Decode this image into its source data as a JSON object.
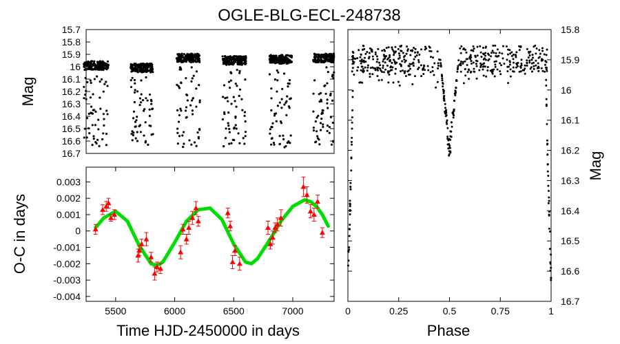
{
  "title": "OGLE-BLG-ECL-248738",
  "chart_data": [
    {
      "type": "scatter",
      "panel": "light-curve",
      "xlabel": "",
      "ylabel": "Mag",
      "xlim": [
        5300,
        7300
      ],
      "ylim": [
        15.7,
        16.7
      ],
      "y_inverted": true,
      "xticks": [],
      "yticks": [
        "15.7",
        "15.8",
        "15.9",
        "16",
        "16.1",
        "16.2",
        "16.3",
        "16.4",
        "16.5",
        "16.6",
        "16.7"
      ],
      "seasons": [
        {
          "start": 5280,
          "end": 5480
        },
        {
          "start": 5660,
          "end": 5840
        },
        {
          "start": 6030,
          "end": 6220
        },
        {
          "start": 6400,
          "end": 6590
        },
        {
          "start": 6780,
          "end": 6960
        },
        {
          "start": 7130,
          "end": 7300
        }
      ],
      "baseline_mag": 15.99,
      "eclipse_depth_mag": 16.65
    },
    {
      "type": "scatter",
      "panel": "o-c",
      "xlabel": "Time HJD-2450000 in days",
      "ylabel": "O-C in days",
      "xlim": [
        5250,
        7350
      ],
      "ylim": [
        -0.0043,
        0.0039
      ],
      "xticks": [
        "5500",
        "6000",
        "6500",
        "7000"
      ],
      "yticks": [
        "0.003",
        "0.002",
        "0.001",
        "0",
        "-0.001",
        "-0.002",
        "-0.003",
        "-0.004"
      ],
      "observed": {
        "name": "",
        "color": "#ff0000",
        "x": [
          5330,
          5390,
          5420,
          5440,
          5460,
          5490,
          5690,
          5700,
          5720,
          5760,
          5800,
          5830,
          5850,
          5880,
          6050,
          6070,
          6100,
          6120,
          6150,
          6180,
          6200,
          6450,
          6470,
          6490,
          6510,
          6550,
          6790,
          6810,
          6830,
          6850,
          6870,
          6900,
          7090,
          7120,
          7150,
          7180,
          7210,
          7250
        ],
        "y": [
          0.0001,
          0.0013,
          0.0015,
          0.0017,
          0.0008,
          0.001,
          -0.0015,
          -0.0012,
          -0.0008,
          -0.0005,
          -0.0016,
          -0.0026,
          -0.0022,
          -0.0023,
          -0.0013,
          0.0001,
          -0.0005,
          0.0002,
          0.0008,
          0.0014,
          0.0006,
          0.0011,
          0.0003,
          -0.0019,
          -0.0012,
          -0.002,
          0.0002,
          -0.0008,
          -0.0004,
          0.0002,
          0.0004,
          0.0008,
          0.0027,
          0.0022,
          0.0012,
          0.001,
          0.0018,
          -0.0001
        ],
        "err": [
          0.0003,
          0.0003,
          0.0003,
          0.0003,
          0.0002,
          0.0003,
          0.0004,
          0.0003,
          0.0003,
          0.0004,
          0.0003,
          0.0004,
          0.0003,
          0.0003,
          0.0004,
          0.0003,
          0.0003,
          0.0004,
          0.0004,
          0.0004,
          0.0003,
          0.0003,
          0.0003,
          0.0004,
          0.0003,
          0.0004,
          0.0004,
          0.0003,
          0.0004,
          0.0003,
          0.0004,
          0.0005,
          0.0006,
          0.0005,
          0.0004,
          0.0004,
          0.0004,
          0.0003
        ]
      },
      "model": {
        "name": "",
        "color": "#00dd00",
        "type": "sinusoid",
        "x": [
          5330,
          5400,
          5500,
          5600,
          5700,
          5800,
          5850,
          5900,
          6000,
          6100,
          6200,
          6300,
          6400,
          6500,
          6600,
          6650,
          6700,
          6800,
          6900,
          7000,
          7100,
          7150,
          7200,
          7250,
          7300
        ],
        "y": [
          0.0002,
          0.0008,
          0.0012,
          0.0006,
          -0.0009,
          -0.002,
          -0.0021,
          -0.0019,
          -0.0007,
          0.0006,
          0.0013,
          0.0014,
          0.0007,
          -0.0008,
          -0.0019,
          -0.002,
          -0.0017,
          -0.0006,
          0.0006,
          0.0015,
          0.0019,
          0.0018,
          0.0015,
          0.001,
          0.0003
        ]
      }
    },
    {
      "type": "scatter",
      "panel": "phased",
      "xlabel": "Phase",
      "ylabel": "Mag",
      "xlim": [
        0,
        1
      ],
      "ylim": [
        15.8,
        16.7
      ],
      "y_inverted": true,
      "xticks": [
        "0",
        "0.25",
        "0.5",
        "0.75",
        "1"
      ],
      "yticks": [
        "15.8",
        "15.9",
        "16",
        "16.1",
        "16.2",
        "16.3",
        "16.4",
        "16.5",
        "16.6",
        "16.7"
      ],
      "primary_eclipse_mag": 16.68,
      "secondary_eclipse_phase": 0.5,
      "secondary_eclipse_mag": 16.25
    }
  ]
}
